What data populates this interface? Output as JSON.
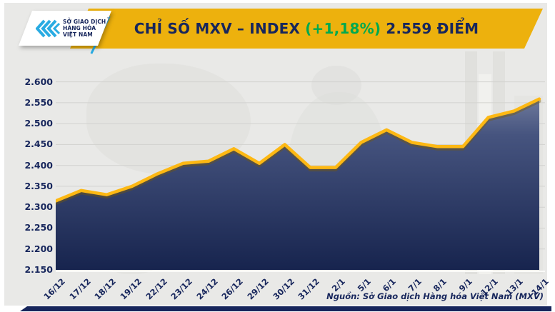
{
  "header": {
    "logo": {
      "line1": "SỞ GIAO DỊCH",
      "line2": "HÀNG HÓA",
      "line3": "VIỆT NAM",
      "trademark": "™"
    },
    "title_main": "CHỈ SỐ MXV – INDEX",
    "title_change": "(+1,18%)",
    "title_value": "2.559 ĐIỂM"
  },
  "chart_data": {
    "type": "area",
    "title": "CHỈ SỐ MXV – INDEX (+1,18%) 2.559 ĐIỂM",
    "x_labels": [
      "16/12",
      "17/12",
      "18/12",
      "19/12",
      "22/12",
      "23/12",
      "24/12",
      "26/12",
      "29/12",
      "30/12",
      "31/12",
      "2/1",
      "5/1",
      "6/1",
      "7/1",
      "8/1",
      "9/1",
      "12/1",
      "13/1",
      "14/1"
    ],
    "values": [
      2315,
      2340,
      2330,
      2350,
      2380,
      2405,
      2410,
      2440,
      2405,
      2450,
      2395,
      2395,
      2455,
      2485,
      2455,
      2445,
      2445,
      2515,
      2530,
      2559
    ],
    "ytick_labels": [
      "2.600",
      "2.550",
      "2.500",
      "2.450",
      "2.400",
      "2.350",
      "2.300",
      "2.250",
      "2.200",
      "2.150"
    ],
    "ytick_values": [
      2600,
      2550,
      2500,
      2450,
      2400,
      2350,
      2300,
      2250,
      2200,
      2150
    ],
    "ylim": [
      2150,
      2625
    ],
    "grid": "horizontal",
    "legend_position": "none",
    "source_note": "Nguồn: Sở Giao dịch Hàng hóa Việt Nam (MXV)"
  },
  "colors": {
    "banner_gold": "#edb10d",
    "line_gold": "#fdb813",
    "line_shadow": "#7a5a00",
    "navy_text": "#17265c",
    "change_green": "#00a94f",
    "fill_top": "#8b95b0",
    "fill_mid": "#46547f",
    "fill_bottom": "#17244e",
    "grid_line": "#d2d2cf",
    "logo_cyan": "#29abe2",
    "background": "#e9e9e7"
  }
}
